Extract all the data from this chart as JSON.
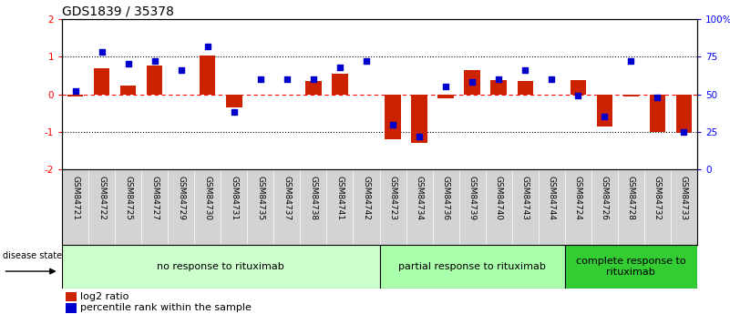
{
  "title": "GDS1839 / 35378",
  "samples": [
    "GSM84721",
    "GSM84722",
    "GSM84725",
    "GSM84727",
    "GSM84729",
    "GSM84730",
    "GSM84731",
    "GSM84735",
    "GSM84737",
    "GSM84738",
    "GSM84741",
    "GSM84742",
    "GSM84723",
    "GSM84734",
    "GSM84736",
    "GSM84739",
    "GSM84740",
    "GSM84743",
    "GSM84744",
    "GSM84724",
    "GSM84726",
    "GSM84728",
    "GSM84732",
    "GSM84733"
  ],
  "log2_ratio": [
    -0.05,
    0.68,
    0.22,
    0.75,
    0.0,
    1.02,
    -0.35,
    0.0,
    0.0,
    0.35,
    0.55,
    0.0,
    -1.2,
    -1.3,
    -0.12,
    0.65,
    0.38,
    0.35,
    0.0,
    0.38,
    -0.85,
    -0.05,
    -1.0,
    -1.02
  ],
  "percentile_rank": [
    52,
    78,
    70,
    72,
    66,
    82,
    38,
    60,
    60,
    60,
    68,
    72,
    30,
    22,
    55,
    58,
    60,
    66,
    60,
    49,
    35,
    72,
    48,
    25
  ],
  "groups": [
    {
      "label": "no response to rituximab",
      "start": 0,
      "end": 12,
      "color": "#ccffcc"
    },
    {
      "label": "partial response to rituximab",
      "start": 12,
      "end": 19,
      "color": "#aaffaa"
    },
    {
      "label": "complete response to\nrituximab",
      "start": 19,
      "end": 24,
      "color": "#33cc33"
    }
  ],
  "bar_color": "#cc2200",
  "dot_color": "#0000cc",
  "ylim": [
    -2,
    2
  ],
  "y2lim": [
    0,
    100
  ],
  "yticks_left": [
    -2,
    -1,
    0,
    1,
    2
  ],
  "yticks_right": [
    0,
    25,
    50,
    75,
    100
  ],
  "ytick_labels_right": [
    "0",
    "25",
    "50",
    "75",
    "100%"
  ],
  "title_fontsize": 10,
  "tick_fontsize": 7.5,
  "sample_fontsize": 6.5,
  "group_fontsize": 8,
  "legend_fontsize": 8
}
